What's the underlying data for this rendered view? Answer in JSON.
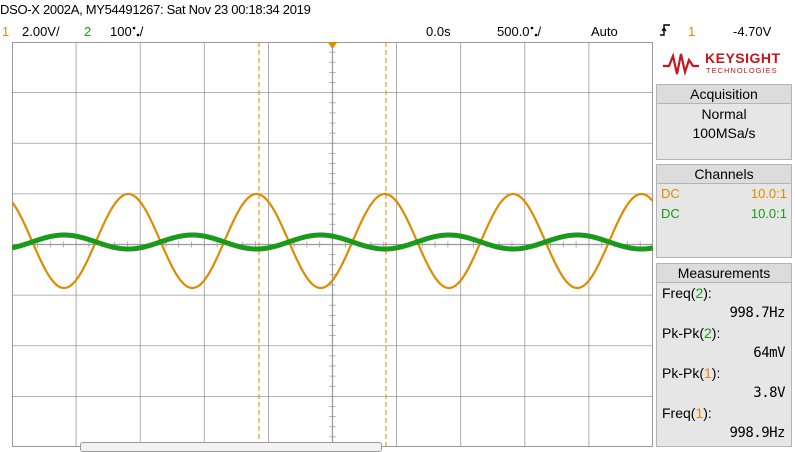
{
  "title": "DSO-X 2002A, MY54491267: Sat Nov 23 00:18:34 2019",
  "status": {
    "ch1_num": "1",
    "ch1_scale": "2.00V/",
    "ch2_num": "2",
    "ch2_scale": "100",
    "ch2_unit": "/",
    "delay": "0.0s",
    "timebase": "500.0",
    "timebase_unit": "/",
    "trigger_mode": "Auto",
    "trigger_icon": "rising-edge-icon",
    "trigger_source": "1",
    "trigger_level": "-4.70V"
  },
  "logo": {
    "brand": "KEYSIGHT",
    "sub": "TECHNOLOGIES"
  },
  "acquisition": {
    "header": "Acquisition",
    "mode": "Normal",
    "rate": "100MSa/s"
  },
  "channels": {
    "header": "Channels",
    "rows": [
      {
        "coupling": "DC",
        "probe": "10.0:1",
        "color": "#e08a00"
      },
      {
        "coupling": "DC",
        "probe": "10.0:1",
        "color": "#1a9a1a"
      }
    ]
  },
  "measurements": {
    "header": "Measurements",
    "items": [
      {
        "name": "Freq(",
        "ch": "2",
        "close": "):",
        "value": "998.7Hz"
      },
      {
        "name": "Pk-Pk(",
        "ch": "2",
        "close": "):",
        "value": "64mV"
      },
      {
        "name": "Pk-Pk(",
        "ch": "1",
        "close": "):",
        "value": "3.8V"
      },
      {
        "name": "Freq(",
        "ch": "1",
        "close": "):",
        "value": "998.9Hz"
      }
    ]
  },
  "colors": {
    "ch1": "#e08a00",
    "ch2": "#1a9a1a",
    "grid": "#9a9a9a",
    "cursor": "#e08a00"
  }
}
